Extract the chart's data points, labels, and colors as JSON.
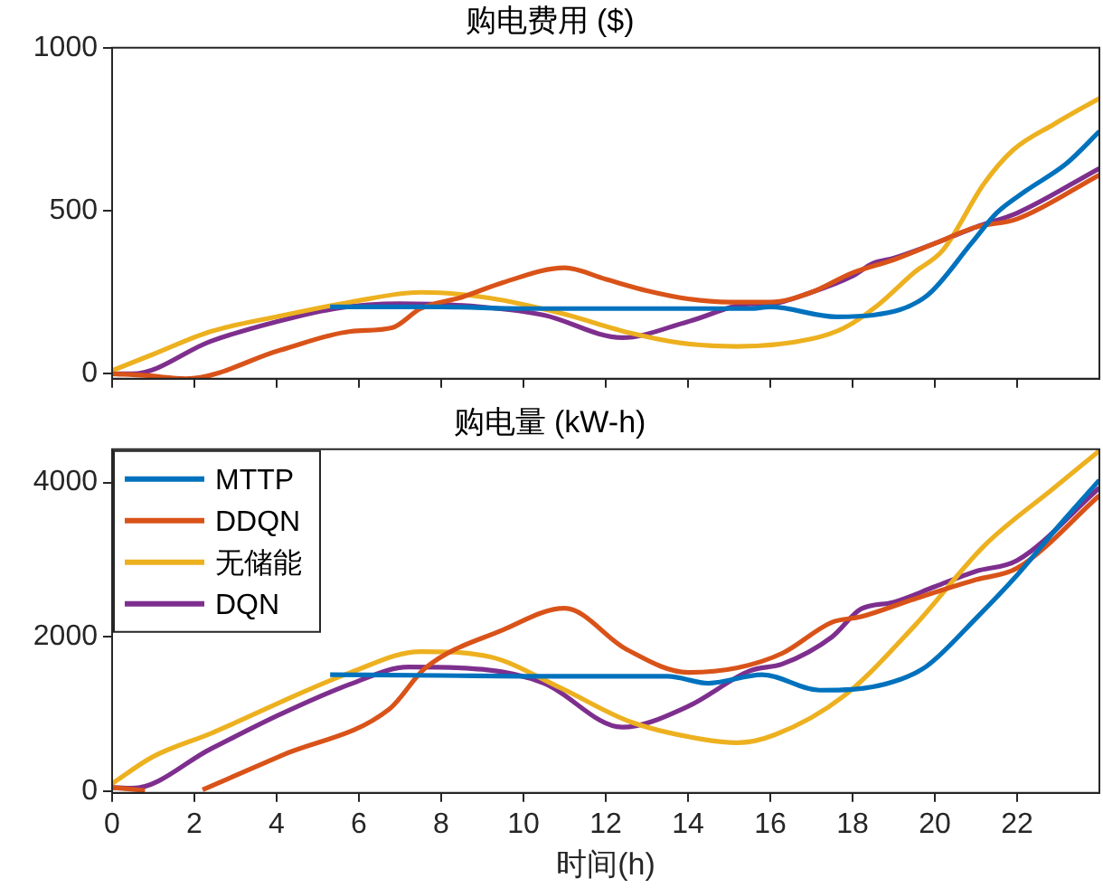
{
  "chart_data": [
    {
      "type": "line",
      "title": "购电费用 ($)",
      "xlim": [
        0,
        24
      ],
      "xticks": [
        0,
        2,
        4,
        6,
        8,
        10,
        12,
        14,
        16,
        18,
        20,
        22
      ],
      "ylim": [
        -15,
        1000
      ],
      "yticks": [
        0,
        500,
        1000
      ],
      "tick_labels": "y",
      "grid": false,
      "legend": false,
      "series": [
        {
          "color": "#0072bd",
          "x": [
            5.3,
            8,
            10,
            13,
            15.5,
            16,
            17.6,
            18.5,
            19.8,
            20.9,
            21.5,
            22.2,
            23.2,
            24
          ],
          "values": [
            205,
            205,
            200,
            200,
            200,
            205,
            175,
            180,
            239,
            402,
            493,
            560,
            645,
            743
          ]
        },
        {
          "color": "#d95319",
          "x": [
            0,
            0.8,
            1.8,
            4.1,
            5.8,
            6.8,
            7.5,
            8.5,
            9.5,
            11,
            12,
            13,
            14,
            15,
            16,
            17,
            18,
            19,
            20,
            21,
            22,
            24
          ],
          "values": [
            0,
            -5,
            -15,
            73,
            130,
            141,
            200,
            235,
            280,
            325,
            290,
            255,
            230,
            220,
            220,
            250,
            310,
            350,
            400,
            450,
            475,
            610
          ]
        },
        {
          "color": "#edb120",
          "x": [
            0,
            1,
            2.4,
            4,
            5.8,
            7.5,
            9.2,
            10.9,
            12.6,
            13.8,
            15.2,
            17,
            17.8,
            18.6,
            19.5,
            20.2,
            21.2,
            21.9,
            22.9,
            24
          ],
          "values": [
            10,
            60,
            130,
            175,
            220,
            250,
            232,
            186,
            125,
            95,
            84,
            107,
            141,
            209,
            311,
            380,
            584,
            686,
            766,
            845
          ]
        },
        {
          "color": "#7e2f8e",
          "x": [
            0,
            0.5,
            2.4,
            4,
            5.5,
            7,
            9,
            10.5,
            12.4,
            14,
            15.5,
            16,
            17,
            18,
            18.5,
            19,
            20,
            21,
            22,
            24
          ],
          "values": [
            0,
            0,
            100,
            160,
            202,
            215,
            205,
            180,
            111,
            160,
            214,
            215,
            250,
            300,
            339,
            355,
            400,
            450,
            493,
            630
          ]
        }
      ]
    },
    {
      "type": "line",
      "title": "购电量 (kW-h)",
      "xlabel": "时间(h)",
      "xlim": [
        0,
        24
      ],
      "xticks": [
        0,
        2,
        4,
        6,
        8,
        10,
        12,
        14,
        16,
        18,
        20,
        22
      ],
      "ylim": [
        -20,
        4430
      ],
      "yticks": [
        0,
        2000,
        4000
      ],
      "grid": false,
      "legend": "top left",
      "series": [
        {
          "name": "MTTP",
          "color": "#0072bd",
          "x": [
            5.3,
            8,
            10,
            13.5,
            14.5,
            15.8,
            17.2,
            18,
            19,
            19.8,
            21,
            22,
            23,
            24
          ],
          "values": [
            1510,
            1500,
            1490,
            1490,
            1400,
            1510,
            1310,
            1320,
            1420,
            1620,
            2240,
            2800,
            3430,
            4030
          ]
        },
        {
          "name": "DDQN",
          "color": "#d95319",
          "x": [
            0,
            0.8,
            1.5,
            2.2,
            4.1,
            6.75,
            7.6,
            9.5,
            11,
            12.5,
            14,
            15.2,
            16.3,
            17.5,
            18.2,
            19.5,
            21,
            22,
            24
          ],
          "values": [
            50,
            10,
            null,
            20,
            460,
            1070,
            1590,
            2090,
            2370,
            1840,
            1540,
            1600,
            1790,
            2190,
            2260,
            2490,
            2740,
            2890,
            3830
          ]
        },
        {
          "name": "无储能",
          "color": "#edb120",
          "x": [
            0,
            1,
            2.4,
            5.8,
            7.5,
            9.2,
            10.9,
            12.6,
            14.4,
            15.2,
            16.1,
            17.8,
            19.5,
            21.2,
            22.9,
            24
          ],
          "values": [
            100,
            450,
            750,
            1540,
            1810,
            1740,
            1340,
            900,
            670,
            630,
            730,
            1240,
            2140,
            3180,
            3930,
            4410
          ]
        },
        {
          "name": "DQN",
          "color": "#7e2f8e",
          "x": [
            0,
            0.5,
            2.4,
            4.1,
            5.8,
            7.2,
            9,
            10.5,
            12.4,
            14,
            15.5,
            16.3,
            17.5,
            18.2,
            19,
            20,
            21,
            22,
            24
          ],
          "values": [
            50,
            40,
            550,
            1000,
            1390,
            1610,
            1580,
            1400,
            830,
            1100,
            1560,
            1650,
            2000,
            2360,
            2450,
            2650,
            2850,
            2990,
            3930
          ]
        }
      ]
    }
  ]
}
